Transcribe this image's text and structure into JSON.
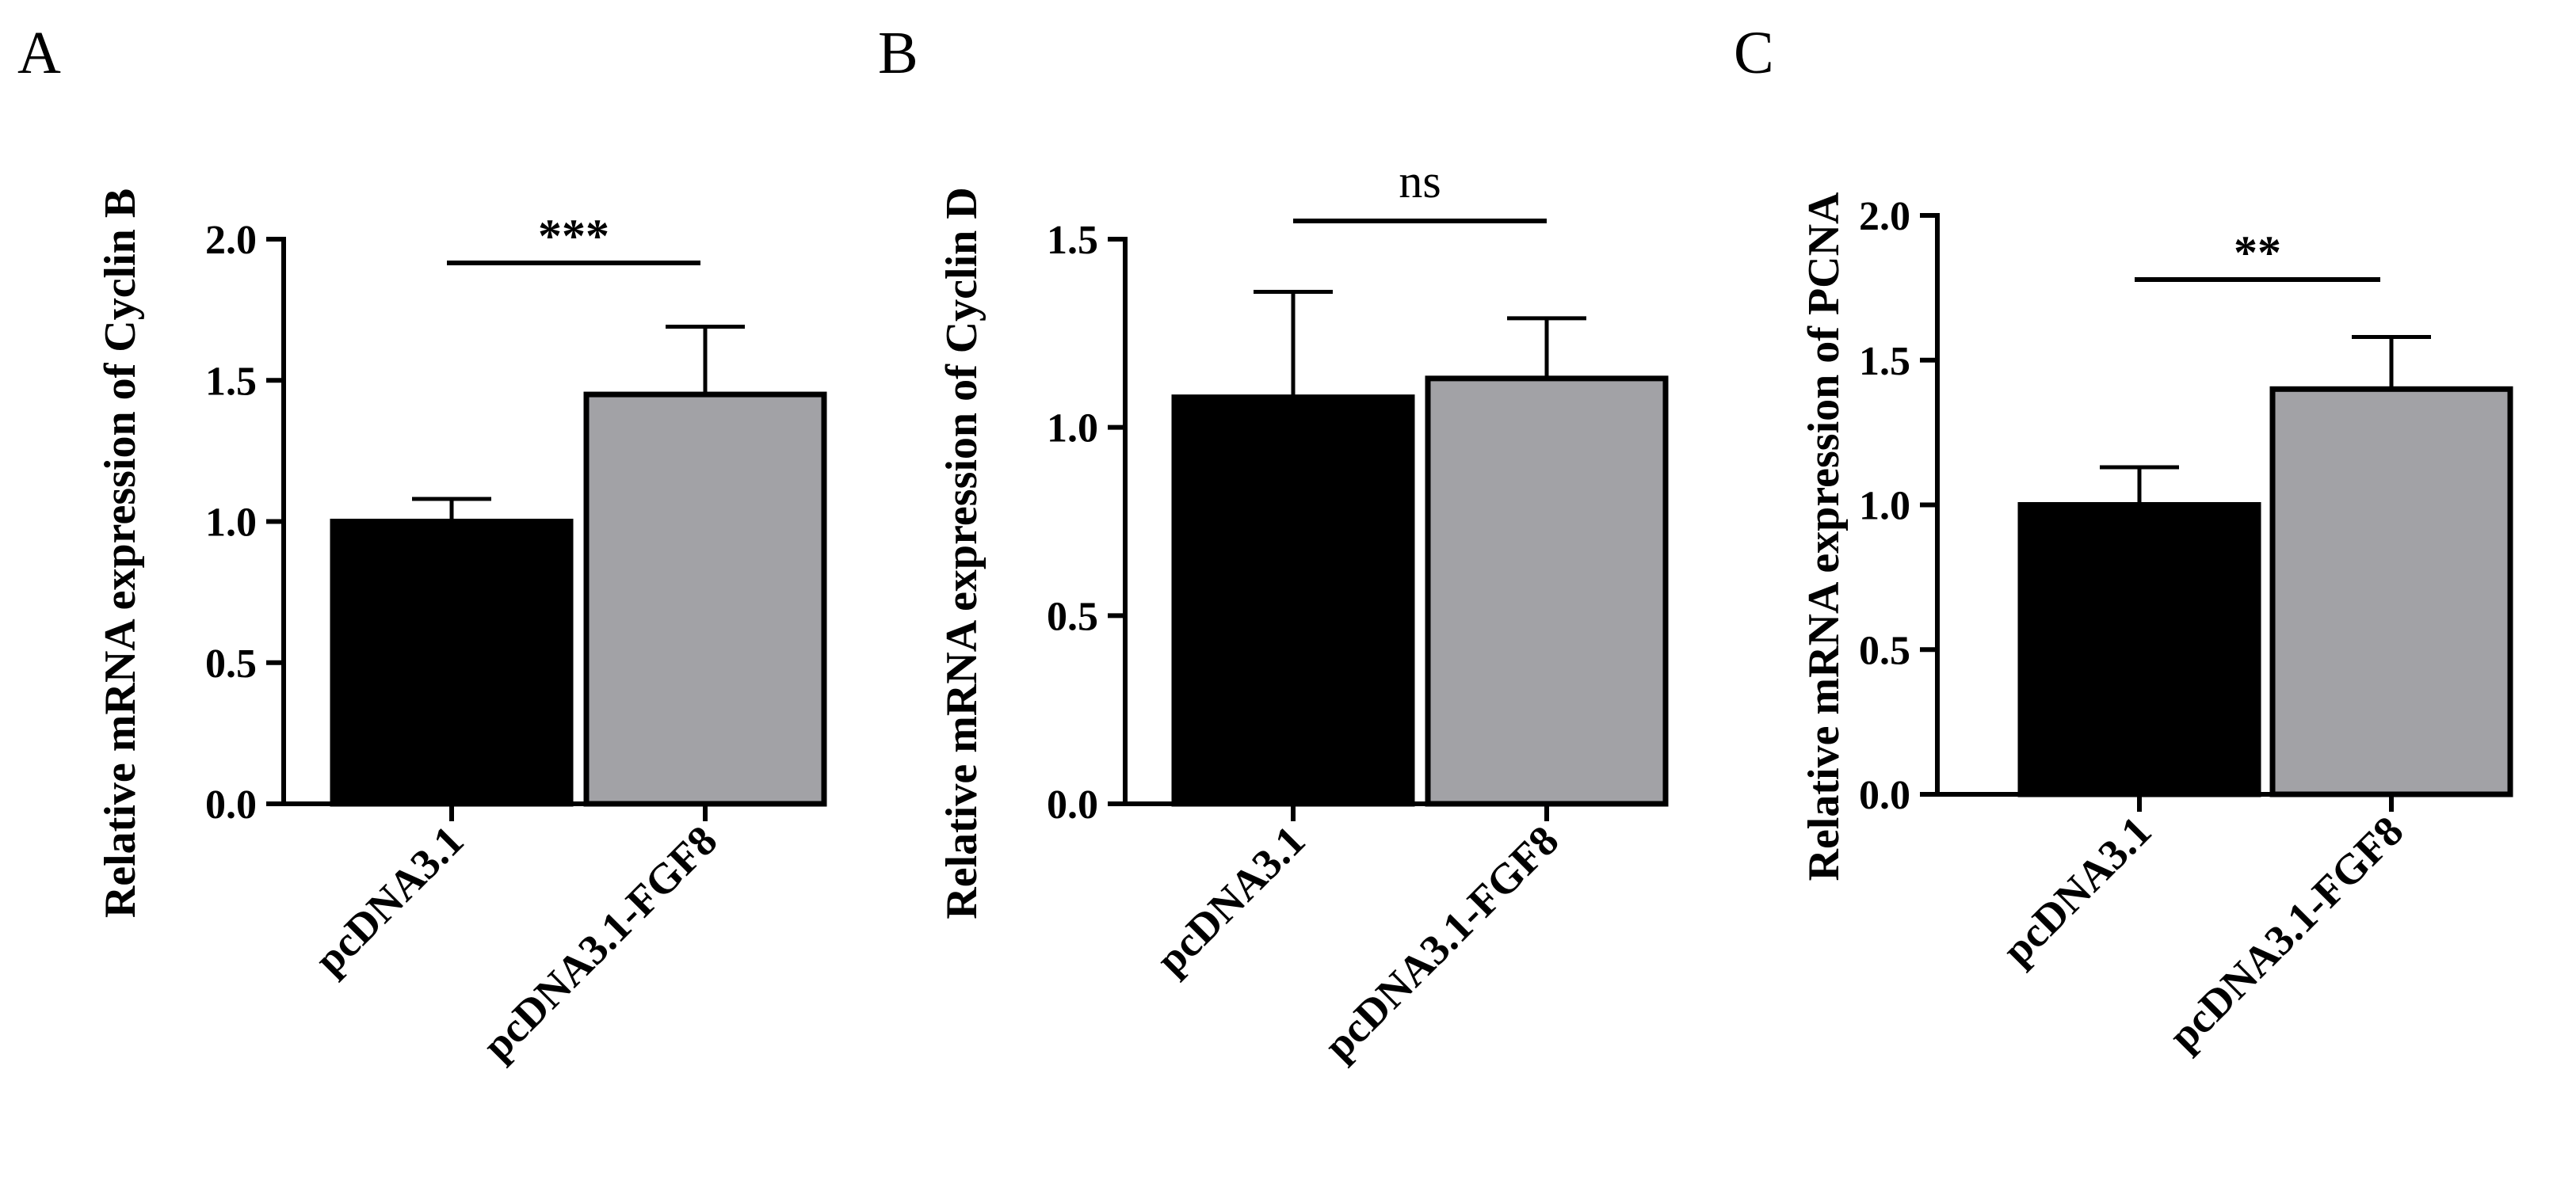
{
  "chart_data": [
    {
      "type": "bar",
      "panel": "A",
      "categories": [
        "pcDNA3.1",
        "pcDNA3.1-FGF8"
      ],
      "values": [
        1.0,
        1.45
      ],
      "errors": [
        0.08,
        0.24
      ],
      "bar_colors": [
        "#000000",
        "#a2a2a6"
      ],
      "ylabel": "Relative mRNA expression of Cyclin B",
      "ylim": [
        0,
        2.0
      ],
      "yticks": [
        0.0,
        0.5,
        1.0,
        1.5,
        2.0
      ],
      "ytick_labels": [
        "0.0",
        "0.5",
        "1.0",
        "1.5",
        "2.0"
      ],
      "significance": "***",
      "grid": false
    },
    {
      "type": "bar",
      "panel": "B",
      "categories": [
        "pcDNA3.1",
        "pcDNA3.1-FGF8"
      ],
      "values": [
        1.08,
        1.13
      ],
      "errors": [
        0.28,
        0.16
      ],
      "bar_colors": [
        "#000000",
        "#a2a2a6"
      ],
      "ylabel": "Relative mRNA expression of Cyclin D",
      "ylim": [
        0,
        1.5
      ],
      "yticks": [
        0.0,
        0.5,
        1.0,
        1.5
      ],
      "ytick_labels": [
        "0.0",
        "0.5",
        "1.0",
        "1.5"
      ],
      "significance": "ns",
      "grid": false
    },
    {
      "type": "bar",
      "panel": "C",
      "categories": [
        "pcDNA3.1",
        "pcDNA3.1-FGF8"
      ],
      "values": [
        1.0,
        1.4
      ],
      "errors": [
        0.13,
        0.18
      ],
      "bar_colors": [
        "#000000",
        "#a2a2a6"
      ],
      "ylabel": "Relative mRNA expression of PCNA",
      "ylim": [
        0,
        2.0
      ],
      "yticks": [
        0.0,
        0.5,
        1.0,
        1.5,
        2.0
      ],
      "ytick_labels": [
        "0.0",
        "0.5",
        "1.0",
        "1.5",
        "2.0"
      ],
      "significance": "**",
      "grid": false
    }
  ]
}
